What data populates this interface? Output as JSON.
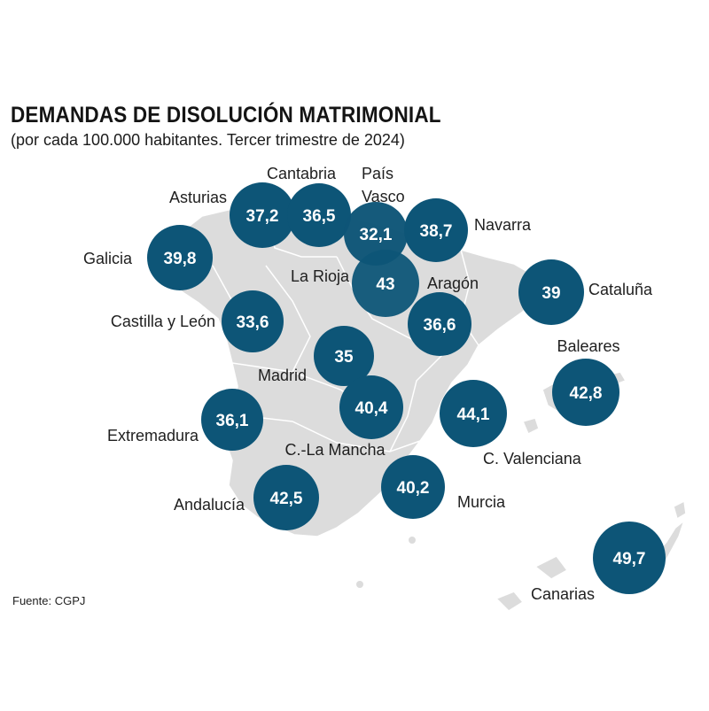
{
  "title": "DEMANDAS DE DISOLUCIÓN MATRIMONIAL",
  "subtitle": "(por cada 100.000 habitantes. Tercer trimestre de 2024)",
  "source": "Fuente: CGPJ",
  "colors": {
    "bubble": "#0d5577",
    "land": "#dcdcdc",
    "border": "#ffffff"
  },
  "regions": [
    {
      "name": "Galicia",
      "value": "39,8"
    },
    {
      "name": "Asturias",
      "value": "37,2"
    },
    {
      "name": "Cantabria",
      "value": "36,5"
    },
    {
      "name_lines": [
        "País",
        "Vasco"
      ],
      "value": "32,1"
    },
    {
      "name": "Navarra",
      "value": "38,7"
    },
    {
      "name": "La Rioja",
      "value": "43"
    },
    {
      "name": "Aragón",
      "value": "36,6"
    },
    {
      "name": "Cataluña",
      "value": "39"
    },
    {
      "name": "Castilla y León",
      "value": "33,6"
    },
    {
      "name": "Madrid",
      "value": "35"
    },
    {
      "name": "C.-La Mancha",
      "value": "40,4"
    },
    {
      "name": "C. Valenciana",
      "value": "44,1"
    },
    {
      "name": "Baleares",
      "value": "42,8"
    },
    {
      "name": "Extremadura",
      "value": "36,1"
    },
    {
      "name": "Andalucía",
      "value": "42,5"
    },
    {
      "name": "Murcia",
      "value": "40,2"
    },
    {
      "name": "Canarias",
      "value": "49,7"
    }
  ]
}
